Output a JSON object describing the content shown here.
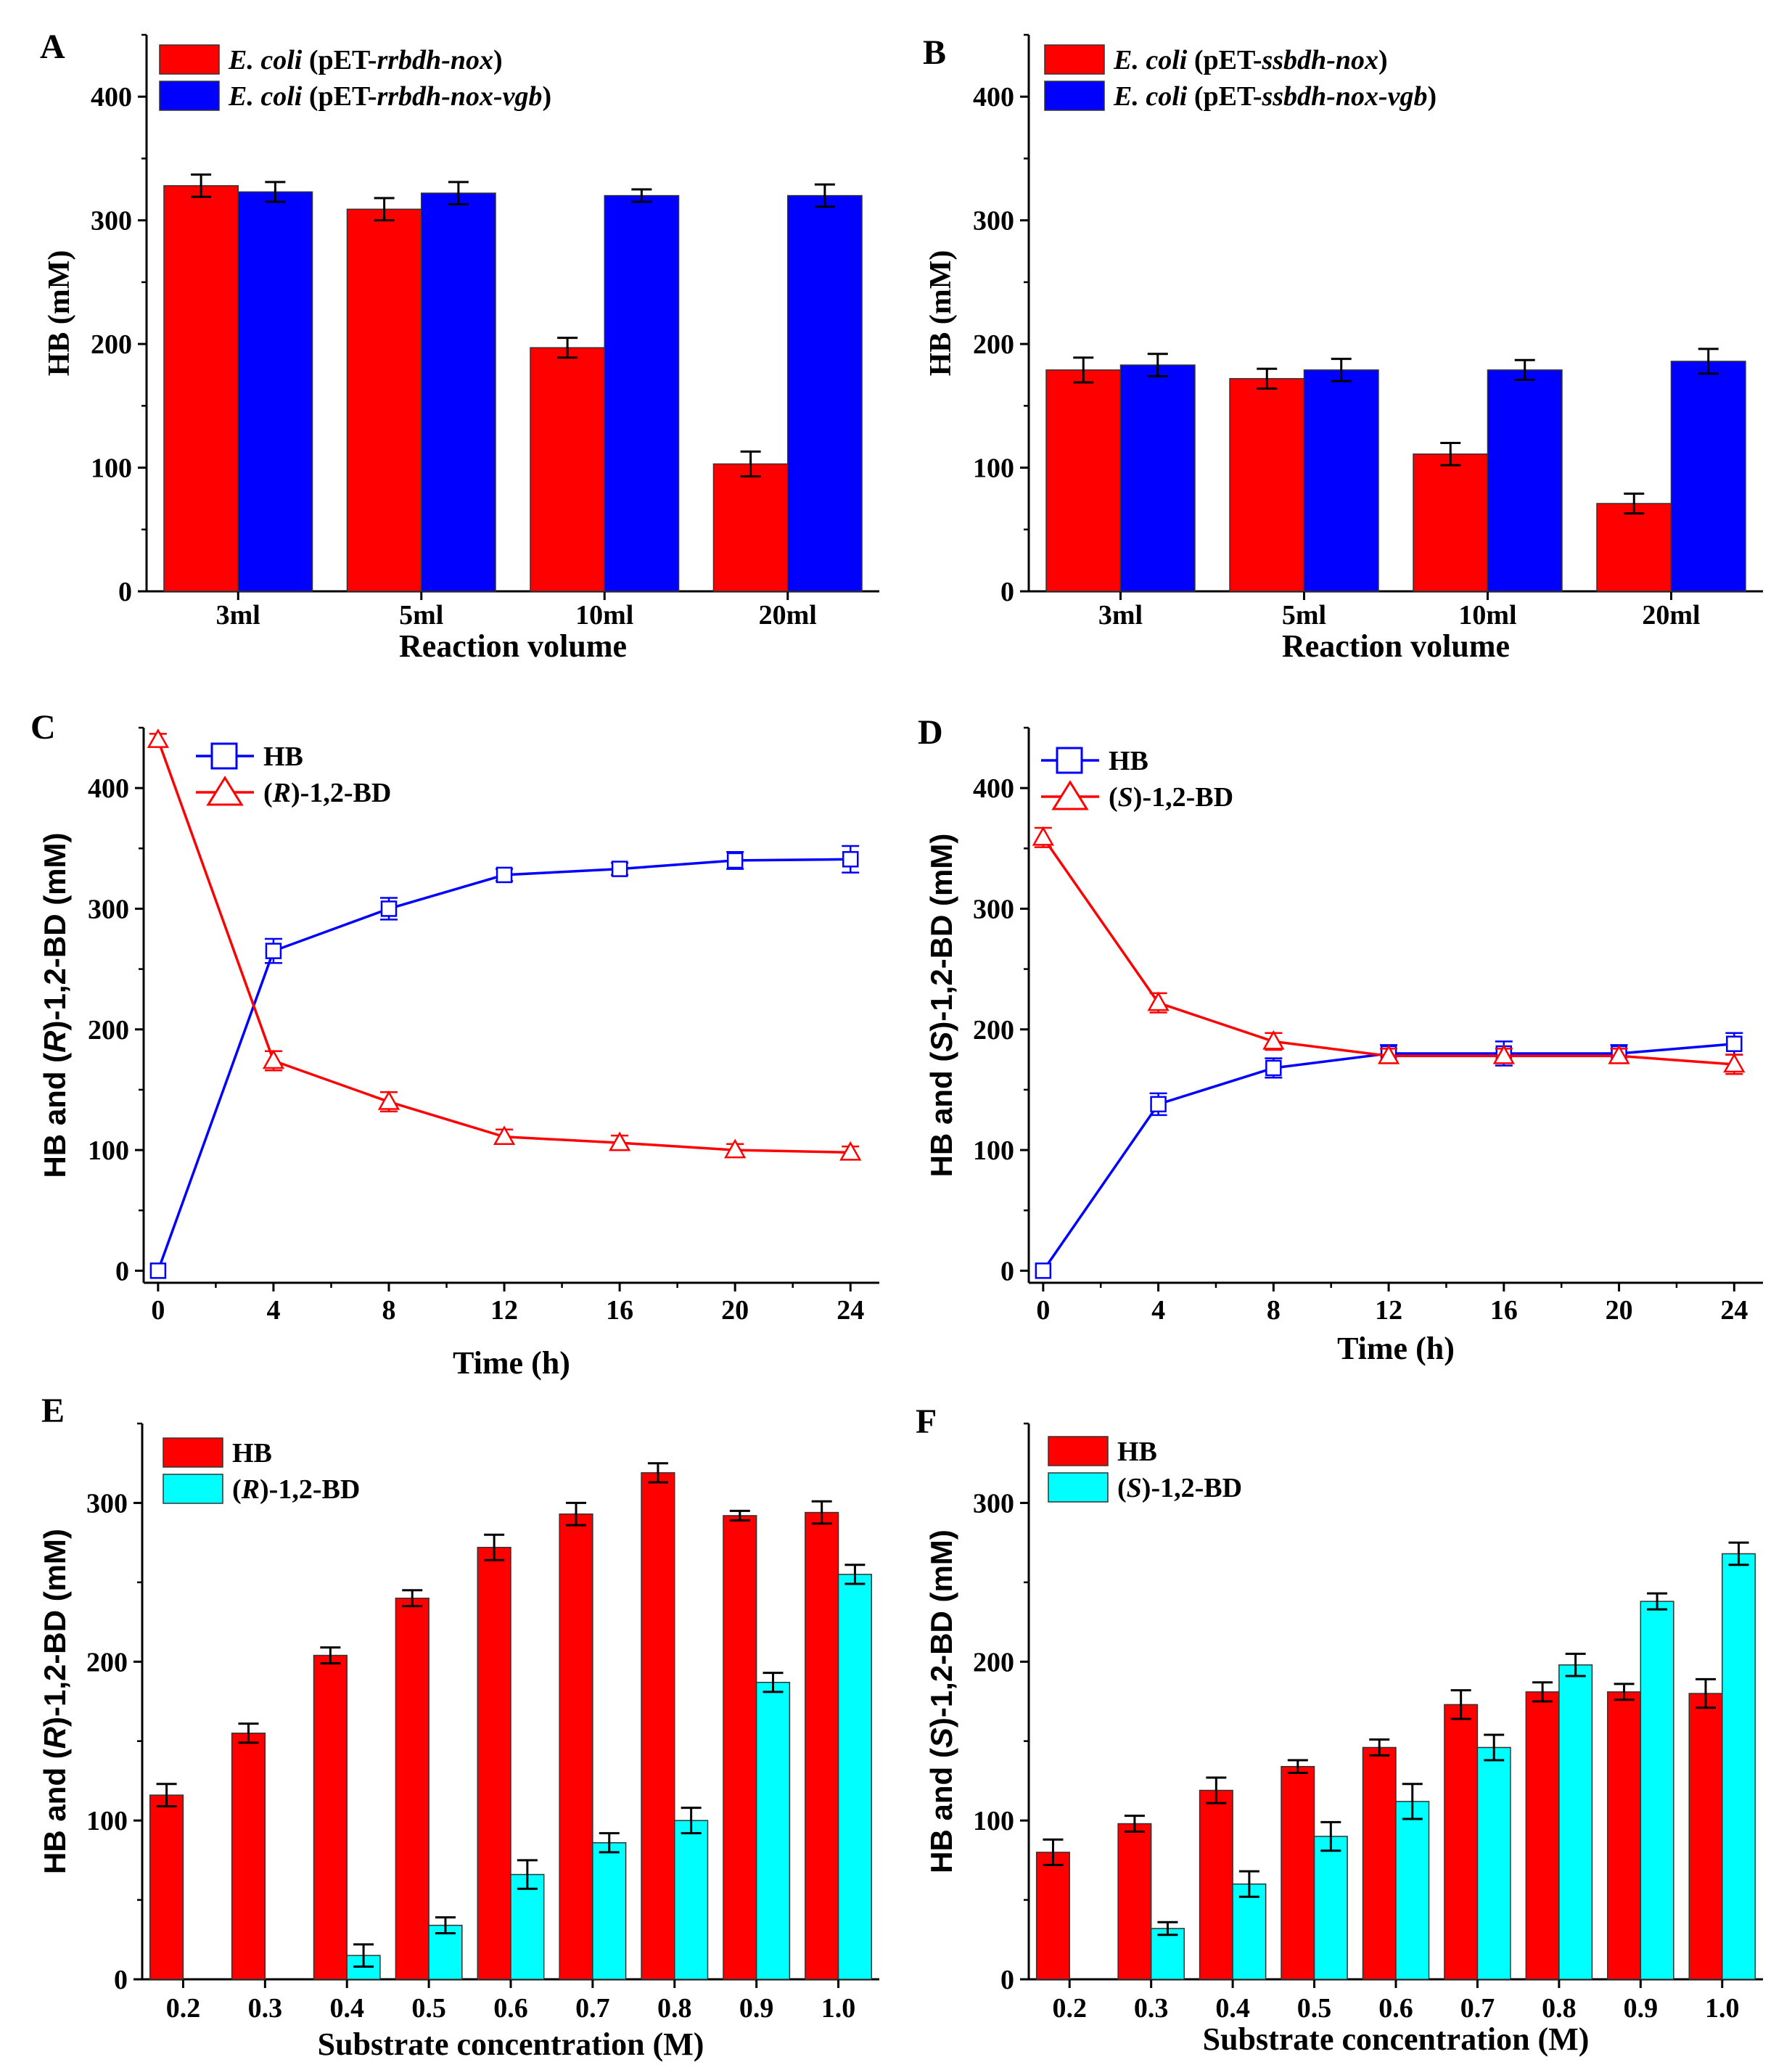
{
  "colors": {
    "red": "#ff0000",
    "blue": "#0000ff",
    "cyan": "#00ffff",
    "axis": "#000000"
  },
  "chart_data": [
    {
      "id": "A",
      "panel_label": "A",
      "type": "bar",
      "categories": [
        "3ml",
        "5ml",
        "10ml",
        "20ml"
      ],
      "series": [
        {
          "name_italic": "E. coli",
          "name_rest": " (pET-",
          "name_italic2": "rrbdh-nox",
          "name_end": ")",
          "color": "#ff0000",
          "values": [
            328,
            309,
            197,
            103
          ],
          "errors": [
            9,
            9,
            8,
            10
          ]
        },
        {
          "name_italic": "E. coli",
          "name_rest": " (pET-",
          "name_italic2": "rrbdh-nox-vgb",
          "name_end": ")",
          "color": "#0000ff",
          "values": [
            323,
            322,
            320,
            320
          ],
          "errors": [
            8,
            9,
            5,
            9
          ]
        }
      ],
      "xlabel": "Reaction volume",
      "ylabel": "HB  (mM)",
      "ylim": [
        0,
        450
      ],
      "yticks": [
        0,
        100,
        200,
        300,
        400
      ],
      "legend": "top-left"
    },
    {
      "id": "B",
      "panel_label": "B",
      "type": "bar",
      "categories": [
        "3ml",
        "5ml",
        "10ml",
        "20ml"
      ],
      "series": [
        {
          "name_italic": "E. coli",
          "name_rest": " (pET-",
          "name_italic2": "ssbdh-nox",
          "name_end": ")",
          "color": "#ff0000",
          "values": [
            179,
            172,
            111,
            71
          ],
          "errors": [
            10,
            8,
            9,
            8
          ]
        },
        {
          "name_italic": "E. coli",
          "name_rest": " (pET-",
          "name_italic2": "ssbdh-nox-vgb",
          "name_end": ")",
          "color": "#0000ff",
          "values": [
            183,
            179,
            179,
            186
          ],
          "errors": [
            9,
            9,
            8,
            10
          ]
        }
      ],
      "xlabel": "Reaction volume",
      "ylabel": "HB  (mM)",
      "ylim": [
        0,
        450
      ],
      "yticks": [
        0,
        100,
        200,
        300,
        400
      ],
      "legend": "top-left"
    },
    {
      "id": "C",
      "panel_label": "C",
      "type": "line",
      "x": [
        0,
        4,
        8,
        12,
        16,
        20,
        24
      ],
      "series": [
        {
          "name": "HB",
          "marker": "square",
          "color": "#0000ff",
          "values": [
            0,
            265,
            300,
            328,
            333,
            340,
            341
          ],
          "errors": [
            0,
            10,
            9,
            5,
            5,
            7,
            11
          ]
        },
        {
          "name_pre": "(",
          "name_italic": "R",
          "name_post": ")-1,2-BD",
          "marker": "triangle",
          "color": "#ff0000",
          "values": [
            440,
            174,
            140,
            111,
            106,
            100,
            98
          ],
          "errors": [
            5,
            8,
            8,
            6,
            6,
            5,
            5
          ]
        }
      ],
      "xlabel": "Time (h)",
      "ylabel_pre": "HB and (",
      "ylabel_italic": "R",
      "ylabel_post": ")-1,2-BD (mM)",
      "xlim": [
        -0.5,
        25
      ],
      "ylim": [
        -10,
        450
      ],
      "xticks": [
        0,
        4,
        8,
        12,
        16,
        20,
        24
      ],
      "yticks": [
        0,
        100,
        200,
        300,
        400
      ],
      "legend": "top-left"
    },
    {
      "id": "D",
      "panel_label": "D",
      "type": "line",
      "x": [
        0,
        4,
        8,
        12,
        16,
        20,
        24
      ],
      "series": [
        {
          "name": "HB",
          "marker": "square",
          "color": "#0000ff",
          "values": [
            0,
            138,
            168,
            180,
            180,
            180,
            188
          ],
          "errors": [
            0,
            9,
            8,
            7,
            10,
            7,
            9
          ]
        },
        {
          "name_pre": "(",
          "name_italic": "S",
          "name_post": ")-1,2-BD",
          "marker": "triangle",
          "color": "#ff0000",
          "values": [
            359,
            222,
            190,
            178,
            178,
            178,
            171
          ],
          "errors": [
            8,
            8,
            7,
            6,
            6,
            6,
            8
          ]
        }
      ],
      "xlabel": "Time (h)",
      "ylabel_pre": "HB and (",
      "ylabel_italic": "S",
      "ylabel_post": ")-1,2-BD (mM)",
      "xlim": [
        -0.5,
        25
      ],
      "ylim": [
        -10,
        450
      ],
      "xticks": [
        0,
        4,
        8,
        12,
        16,
        20,
        24
      ],
      "yticks": [
        0,
        100,
        200,
        300,
        400
      ],
      "legend": "top-left"
    },
    {
      "id": "E",
      "panel_label": "E",
      "type": "bar",
      "categories": [
        "0.2",
        "0.3",
        "0.4",
        "0.5",
        "0.6",
        "0.7",
        "0.8",
        "0.9",
        "1.0"
      ],
      "series": [
        {
          "name": "HB",
          "color": "#ff0000",
          "values": [
            116,
            155,
            204,
            240,
            272,
            293,
            319,
            292,
            294
          ],
          "errors": [
            7,
            6,
            5,
            5,
            8,
            7,
            6,
            3,
            7
          ]
        },
        {
          "name_pre": "(",
          "name_italic": "R",
          "name_post": ")-1,2-BD",
          "color": "#00ffff",
          "values": [
            0,
            0,
            15,
            34,
            66,
            86,
            100,
            187,
            255
          ],
          "errors": [
            0,
            0,
            7,
            5,
            9,
            6,
            8,
            6,
            6
          ]
        }
      ],
      "xlabel": "Substrate concentration (M)",
      "ylabel_pre": "HB and (",
      "ylabel_italic": "R",
      "ylabel_post": ")-1,2-BD (mM)",
      "ylim": [
        0,
        350
      ],
      "yticks": [
        0,
        100,
        200,
        300
      ],
      "legend": "top-left"
    },
    {
      "id": "F",
      "panel_label": "F",
      "type": "bar",
      "categories": [
        "0.2",
        "0.3",
        "0.4",
        "0.5",
        "0.6",
        "0.7",
        "0.8",
        "0.9",
        "1.0"
      ],
      "series": [
        {
          "name": "HB",
          "color": "#ff0000",
          "values": [
            80,
            98,
            119,
            134,
            146,
            173,
            181,
            181,
            180
          ],
          "errors": [
            8,
            5,
            8,
            4,
            5,
            9,
            6,
            5,
            9
          ]
        },
        {
          "name_pre": "(",
          "name_italic": "S",
          "name_post": ")-1,2-BD",
          "color": "#00ffff",
          "values": [
            0,
            32,
            60,
            90,
            112,
            146,
            198,
            238,
            268
          ],
          "errors": [
            0,
            4,
            8,
            9,
            11,
            8,
            7,
            5,
            7
          ]
        }
      ],
      "xlabel": "Substrate concentration (M)",
      "ylabel_pre": "HB and (",
      "ylabel_italic": "S",
      "ylabel_post": ")-1,2-BD (mM)",
      "ylim": [
        0,
        350
      ],
      "yticks": [
        0,
        100,
        200,
        300
      ],
      "legend": "top-left"
    }
  ]
}
